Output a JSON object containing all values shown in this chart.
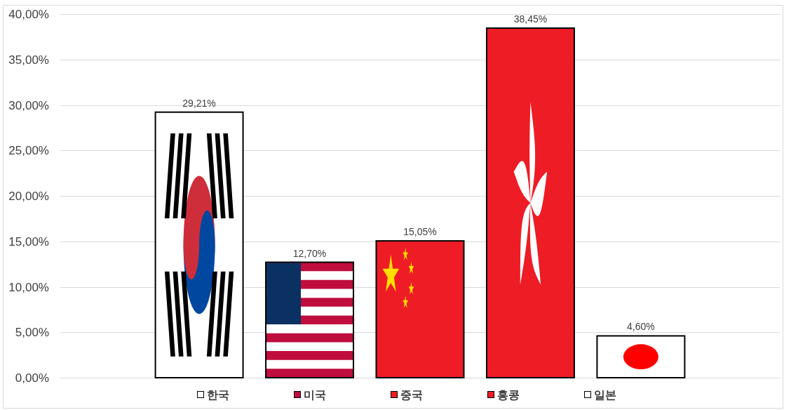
{
  "chart_data": {
    "type": "bar",
    "categories": [
      null
    ],
    "series": [
      {
        "name": "한국",
        "color": "#ffffff",
        "values": [
          29.21
        ],
        "value_labels": [
          "29,21%"
        ]
      },
      {
        "name": "미국",
        "color": "#bf0d3e",
        "values": [
          12.7
        ],
        "value_labels": [
          "12,70%"
        ]
      },
      {
        "name": "중국",
        "color": "#ee1c25",
        "values": [
          15.05
        ],
        "value_labels": [
          "15,05%"
        ]
      },
      {
        "name": "홍콩",
        "color": "#ee1c25",
        "values": [
          38.45
        ],
        "value_labels": [
          "38,45%"
        ]
      },
      {
        "name": "일본",
        "color": "#ffffff",
        "values": [
          4.6
        ],
        "value_labels": [
          "4,60%"
        ]
      }
    ],
    "ylim": [
      0,
      40
    ],
    "yticks": [
      {
        "value": 0,
        "label": "0,00%"
      },
      {
        "value": 5,
        "label": "5,00%"
      },
      {
        "value": 10,
        "label": "10,00%"
      },
      {
        "value": 15,
        "label": "15,00%"
      },
      {
        "value": 20,
        "label": "20,00%"
      },
      {
        "value": 25,
        "label": "25,00%"
      },
      {
        "value": 30,
        "label": "30,00%"
      },
      {
        "value": 35,
        "label": "35,00%"
      },
      {
        "value": 40,
        "label": "40,00%"
      }
    ],
    "grid": "y",
    "legend": "bottom",
    "tick_labels": "y"
  }
}
